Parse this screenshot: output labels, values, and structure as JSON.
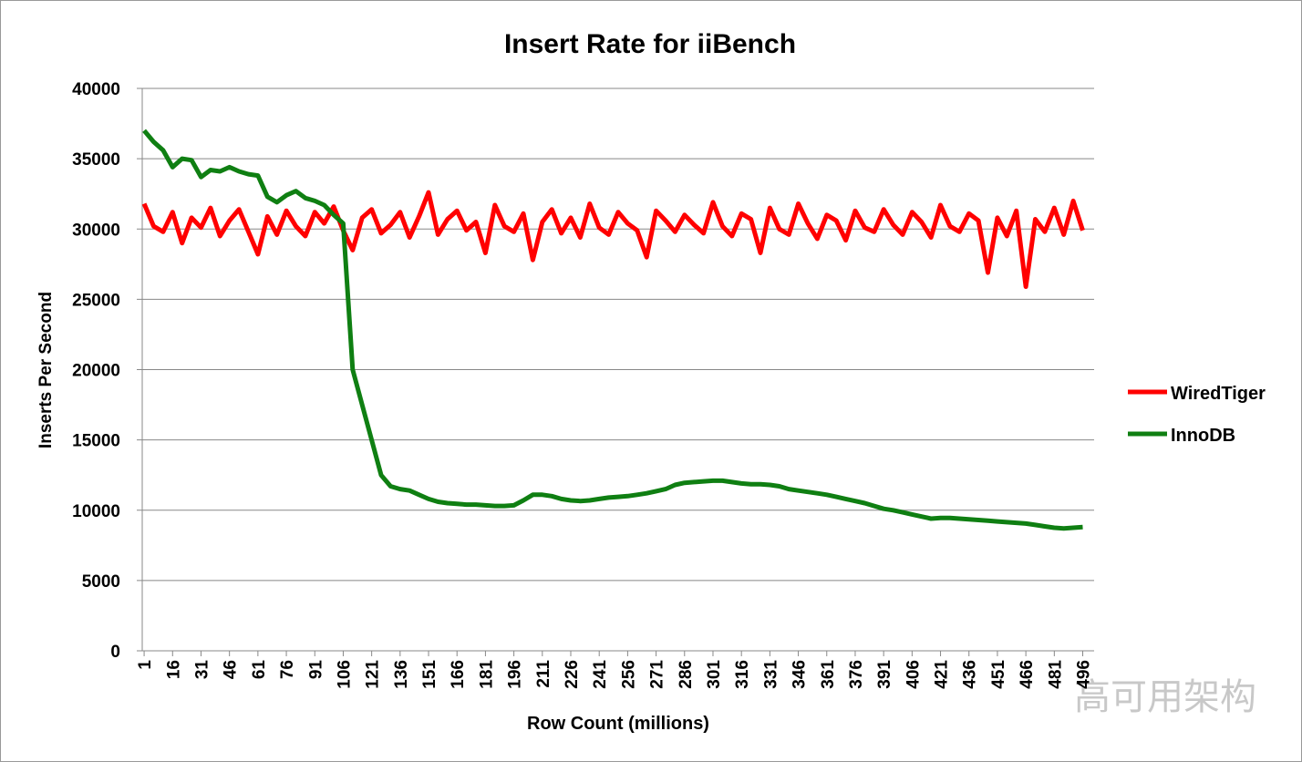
{
  "chart_data": {
    "type": "line",
    "title": "Insert Rate for iiBench",
    "x_label": "Row Count (millions)",
    "y_label": "Inserts Per Second",
    "watermark": "高可用架构",
    "x": [
      1,
      6,
      11,
      16,
      21,
      26,
      31,
      36,
      41,
      46,
      51,
      56,
      61,
      66,
      71,
      76,
      81,
      86,
      91,
      96,
      101,
      106,
      111,
      116,
      121,
      126,
      131,
      136,
      141,
      146,
      151,
      156,
      161,
      166,
      171,
      176,
      181,
      186,
      191,
      196,
      201,
      206,
      211,
      216,
      221,
      226,
      231,
      236,
      241,
      246,
      251,
      256,
      261,
      266,
      271,
      276,
      281,
      286,
      291,
      296,
      301,
      306,
      311,
      316,
      321,
      326,
      331,
      336,
      341,
      346,
      351,
      356,
      361,
      366,
      371,
      376,
      381,
      386,
      391,
      396,
      401,
      406,
      411,
      416,
      421,
      426,
      431,
      436,
      441,
      446,
      451,
      456,
      461,
      466,
      471,
      476,
      481,
      486,
      491,
      496
    ],
    "series": [
      {
        "name": "WiredTiger",
        "color": "#ff0000",
        "values": [
          31800,
          30200,
          29800,
          31200,
          29000,
          30800,
          30100,
          31500,
          29500,
          30600,
          31400,
          29800,
          28200,
          30900,
          29600,
          31300,
          30200,
          29500,
          31200,
          30400,
          31600,
          29900,
          28500,
          30800,
          31400,
          29700,
          30300,
          31200,
          29400,
          30900,
          32600,
          29600,
          30700,
          31300,
          29900,
          30500,
          28300,
          31700,
          30200,
          29800,
          31100,
          27800,
          30500,
          31400,
          29700,
          30800,
          29400,
          31800,
          30100,
          29600,
          31200,
          30400,
          29900,
          28000,
          31300,
          30600,
          29800,
          31000,
          30300,
          29700,
          31900,
          30200,
          29500,
          31100,
          30700,
          28300,
          31500,
          30000,
          29600,
          31800,
          30400,
          29300,
          31000,
          30600,
          29200,
          31300,
          30100,
          29800,
          31400,
          30300,
          29600,
          31200,
          30500,
          29400,
          31700,
          30200,
          29800,
          31100,
          30600,
          26900,
          30800,
          29500,
          31300,
          25900,
          30700,
          29800,
          31500,
          29600,
          32000,
          29900
        ]
      },
      {
        "name": "InnoDB",
        "color": "#0f7f12",
        "values": [
          37000,
          36200,
          35600,
          34400,
          35000,
          34900,
          33700,
          34200,
          34100,
          34400,
          34100,
          33900,
          33800,
          32300,
          31900,
          32400,
          32700,
          32200,
          32000,
          31700,
          31000,
          30400,
          20000,
          17500,
          15000,
          12500,
          11700,
          11500,
          11400,
          11100,
          10800,
          10600,
          10500,
          10450,
          10400,
          10400,
          10350,
          10300,
          10300,
          10350,
          10700,
          11100,
          11100,
          11000,
          10800,
          10700,
          10650,
          10700,
          10800,
          10900,
          10950,
          11000,
          11100,
          11200,
          11350,
          11500,
          11800,
          11950,
          12000,
          12050,
          12100,
          12100,
          12000,
          11900,
          11850,
          11850,
          11800,
          11700,
          11500,
          11400,
          11300,
          11200,
          11100,
          10950,
          10800,
          10650,
          10500,
          10300,
          10100,
          10000,
          9850,
          9700,
          9550,
          9400,
          9450,
          9450,
          9400,
          9350,
          9300,
          9250,
          9200,
          9150,
          9100,
          9050,
          8950,
          8850,
          8750,
          8700,
          8750,
          8800
        ]
      }
    ],
    "xlim": [
      0,
      502
    ],
    "xticks": [
      1,
      16,
      31,
      46,
      61,
      76,
      91,
      106,
      121,
      136,
      151,
      166,
      181,
      196,
      211,
      226,
      241,
      256,
      271,
      286,
      301,
      316,
      331,
      346,
      361,
      376,
      391,
      406,
      421,
      436,
      451,
      466,
      481,
      496
    ],
    "ylim": [
      0,
      40000
    ],
    "yticks": [
      0,
      5000,
      10000,
      15000,
      20000,
      25000,
      30000,
      35000,
      40000
    ],
    "grid": true,
    "legend": "right"
  }
}
